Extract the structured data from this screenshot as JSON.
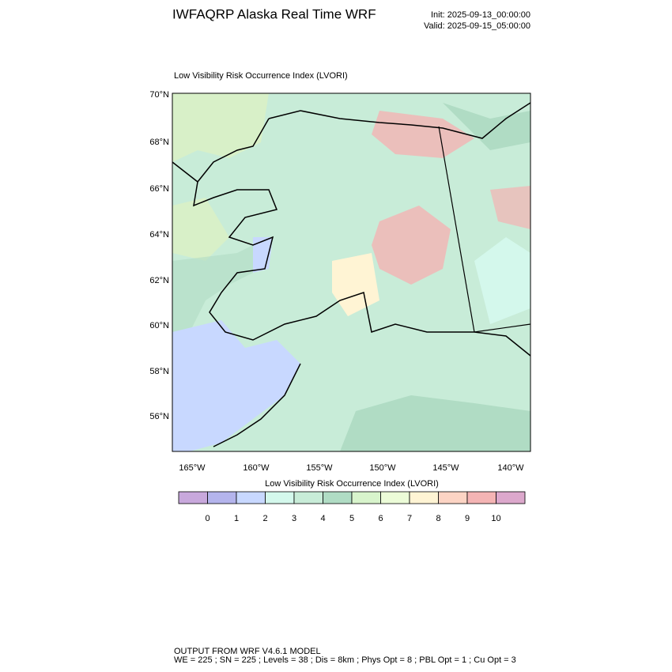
{
  "header": {
    "title": "IWFAQRP Alaska Real Time WRF",
    "init": "Init: 2025-09-13_00:00:00",
    "valid": "Valid: 2025-09-15_05:00:00"
  },
  "map": {
    "title": "Low Visibility Risk Occurrence Index   (LVORI)",
    "lat_labels": [
      "70°N",
      "68°N",
      "66°N",
      "64°N",
      "62°N",
      "60°N",
      "58°N",
      "56°N"
    ],
    "lon_labels": [
      "165°W",
      "160°W",
      "155°W",
      "150°W",
      "145°W",
      "140°W"
    ]
  },
  "colorbar": {
    "title": "Low Visibility Risk Occurrence Index  (LVORI)",
    "colors": [
      "#c8a8dc",
      "#b4b4ec",
      "#c8d8ff",
      "#d4f8ec",
      "#c8ecd8",
      "#b0dcc4",
      "#d8f4cc",
      "#ecfcd8",
      "#fff4d4",
      "#fcd4c4",
      "#f4b4b4",
      "#dca8cc"
    ],
    "labels": [
      "0",
      "1",
      "2",
      "3",
      "4",
      "5",
      "6",
      "7",
      "8",
      "9",
      "10"
    ]
  },
  "footer": {
    "line1": "OUTPUT FROM WRF V4.6.1 MODEL",
    "line2": "WE = 225 ; SN = 225 ; Levels = 38 ; Dis = 8km ; Phys Opt = 8 ; PBL Opt = 1 ; Cu Opt = 3"
  }
}
